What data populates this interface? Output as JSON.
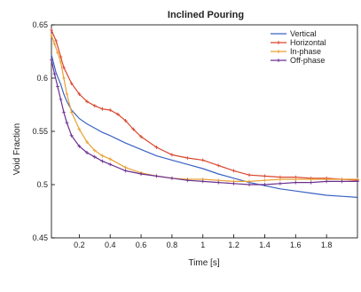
{
  "chart_data": {
    "type": "line",
    "title": "Inclined Pouring",
    "xlabel": "Time [s]",
    "ylabel": "Void Fraction",
    "xlim": [
      0.02,
      2.0
    ],
    "ylim": [
      0.45,
      0.65
    ],
    "xticks": [
      0.2,
      0.4,
      0.6,
      0.8,
      1.0,
      1.2,
      1.4,
      1.6,
      1.8
    ],
    "xtick_labels": [
      "0.2",
      "0.4",
      "0.6",
      "0.8",
      "1",
      "1.2",
      "1.4",
      "1.6",
      "1.8"
    ],
    "yticks": [
      0.45,
      0.5,
      0.55,
      0.6,
      0.65
    ],
    "ytick_labels": [
      "0.45",
      "0.5",
      "0.55",
      "0.6",
      "0.65"
    ],
    "grid": false,
    "legend_position": "top-right",
    "series": [
      {
        "name": "Vertical",
        "color": "#3a62c4",
        "marker": "none",
        "x": [
          0.02,
          0.05,
          0.08,
          0.1,
          0.12,
          0.15,
          0.2,
          0.25,
          0.3,
          0.35,
          0.4,
          0.5,
          0.6,
          0.7,
          0.8,
          0.9,
          1.0,
          1.1,
          1.2,
          1.3,
          1.4,
          1.5,
          1.6,
          1.7,
          1.8,
          1.9,
          2.0
        ],
        "y": [
          0.622,
          0.605,
          0.594,
          0.585,
          0.578,
          0.57,
          0.562,
          0.557,
          0.553,
          0.549,
          0.546,
          0.539,
          0.533,
          0.527,
          0.523,
          0.519,
          0.515,
          0.51,
          0.506,
          0.502,
          0.499,
          0.496,
          0.494,
          0.492,
          0.49,
          0.489,
          0.488
        ]
      },
      {
        "name": "Horizontal",
        "color": "#d9452b",
        "marker": "plus",
        "x": [
          0.02,
          0.05,
          0.08,
          0.1,
          0.15,
          0.2,
          0.25,
          0.3,
          0.35,
          0.4,
          0.45,
          0.5,
          0.55,
          0.6,
          0.7,
          0.8,
          0.9,
          1.0,
          1.1,
          1.2,
          1.3,
          1.4,
          1.5,
          1.6,
          1.7,
          1.8,
          1.9,
          2.0
        ],
        "y": [
          0.645,
          0.635,
          0.62,
          0.61,
          0.595,
          0.585,
          0.578,
          0.574,
          0.571,
          0.57,
          0.566,
          0.56,
          0.552,
          0.545,
          0.535,
          0.528,
          0.525,
          0.523,
          0.518,
          0.513,
          0.509,
          0.508,
          0.507,
          0.507,
          0.506,
          0.506,
          0.505,
          0.504
        ]
      },
      {
        "name": "In-phase",
        "color": "#e8a030",
        "marker": "plus",
        "x": [
          0.02,
          0.04,
          0.06,
          0.08,
          0.1,
          0.12,
          0.15,
          0.2,
          0.25,
          0.3,
          0.35,
          0.4,
          0.5,
          0.6,
          0.7,
          0.8,
          0.9,
          1.0,
          1.1,
          1.2,
          1.3,
          1.4,
          1.5,
          1.6,
          1.7,
          1.8,
          1.9,
          2.0
        ],
        "y": [
          0.64,
          0.632,
          0.624,
          0.615,
          0.6,
          0.585,
          0.568,
          0.552,
          0.54,
          0.532,
          0.527,
          0.524,
          0.516,
          0.511,
          0.508,
          0.506,
          0.505,
          0.505,
          0.504,
          0.503,
          0.503,
          0.504,
          0.505,
          0.505,
          0.505,
          0.505,
          0.505,
          0.505
        ]
      },
      {
        "name": "Off-phase",
        "color": "#6a2f8f",
        "marker": "plus",
        "x": [
          0.02,
          0.04,
          0.06,
          0.08,
          0.1,
          0.12,
          0.15,
          0.2,
          0.25,
          0.3,
          0.35,
          0.4,
          0.5,
          0.6,
          0.7,
          0.8,
          0.9,
          1.0,
          1.1,
          1.2,
          1.3,
          1.4,
          1.5,
          1.6,
          1.7,
          1.8,
          1.9,
          2.0
        ],
        "y": [
          0.617,
          0.604,
          0.592,
          0.58,
          0.568,
          0.558,
          0.546,
          0.536,
          0.53,
          0.526,
          0.522,
          0.519,
          0.513,
          0.51,
          0.508,
          0.506,
          0.504,
          0.503,
          0.502,
          0.501,
          0.5,
          0.5,
          0.501,
          0.502,
          0.502,
          0.503,
          0.503,
          0.503
        ]
      }
    ]
  }
}
